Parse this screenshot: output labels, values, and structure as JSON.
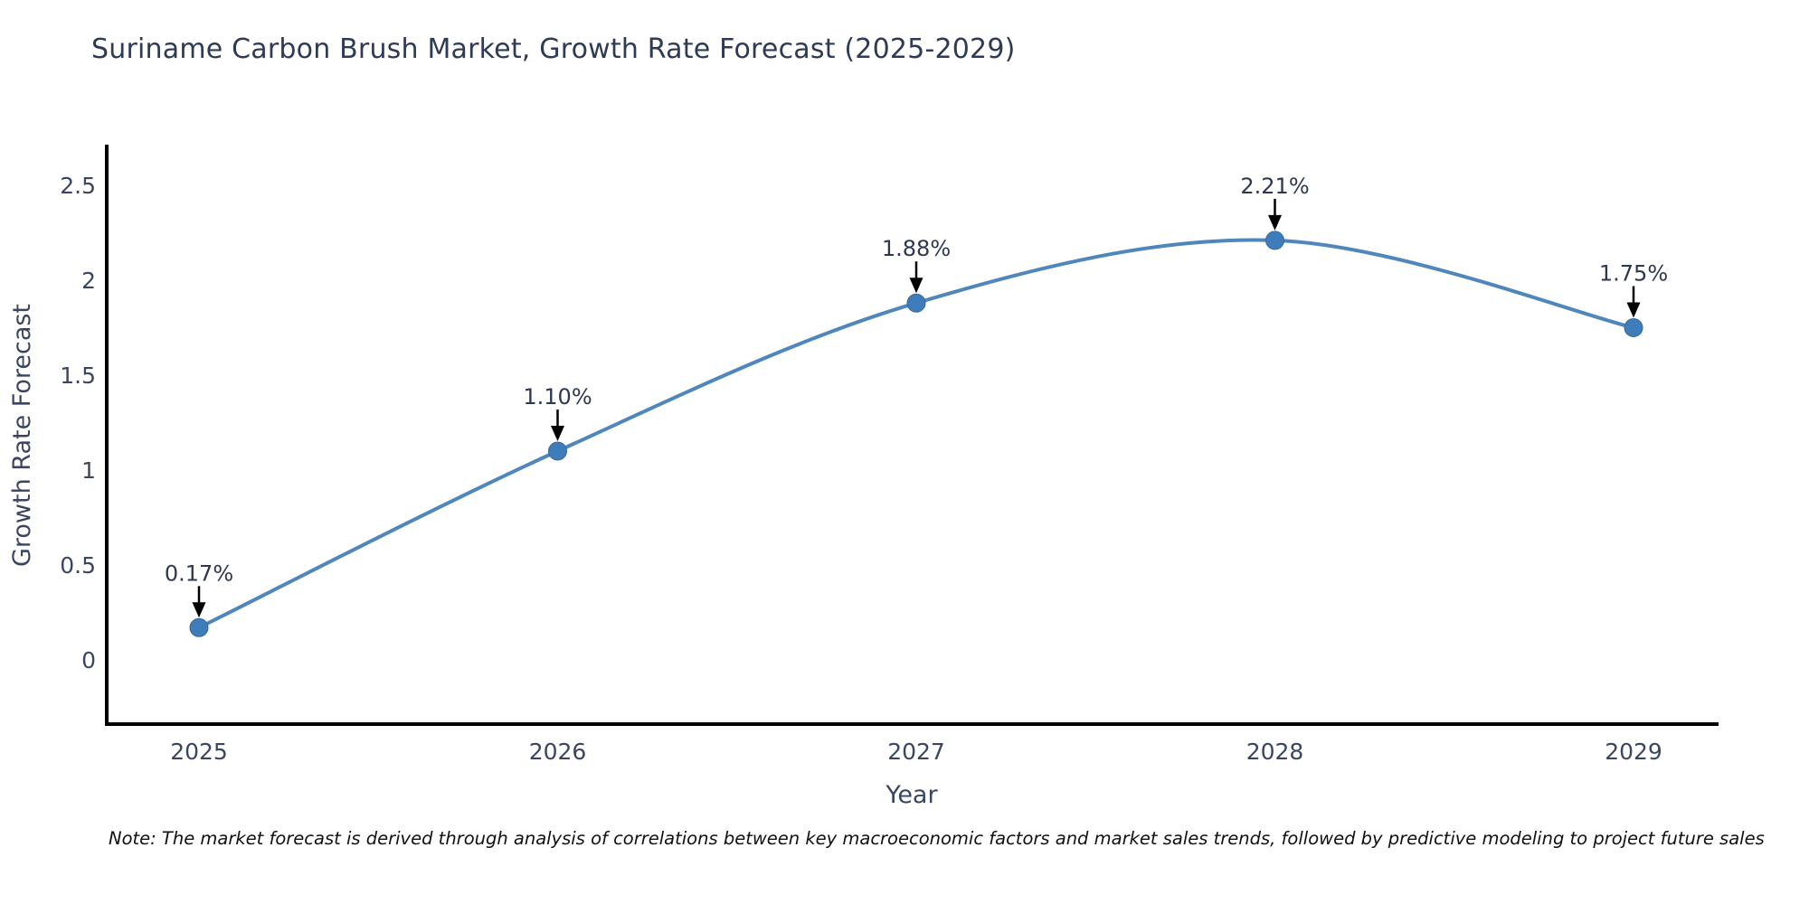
{
  "header": {
    "title": "Suriname Carbon Brush Market, Growth Rate Forecast (2025-2029)"
  },
  "note": {
    "text": "Note: The market forecast is derived through analysis of correlations between key macroeconomic factors and market sales trends, followed by predictive modeling to project future sales"
  },
  "chart_data": {
    "type": "line",
    "title": "Suriname Carbon Brush Market, Growth Rate Forecast (2025-2029)",
    "xlabel": "Year",
    "ylabel": "Growth Rate Forecast",
    "x": [
      2025,
      2026,
      2027,
      2028,
      2029
    ],
    "values": [
      0.17,
      1.1,
      1.88,
      2.21,
      1.75
    ],
    "point_labels": [
      "0.17%",
      "1.10%",
      "1.88%",
      "2.21%",
      "1.75%"
    ],
    "xtick_labels": [
      "2025",
      "2026",
      "2027",
      "2028",
      "2029"
    ],
    "ytick_labels": [
      "0",
      "0.5",
      "1",
      "1.5",
      "2",
      "2.5"
    ],
    "ytick_values": [
      0,
      0.5,
      1,
      1.5,
      2,
      2.5
    ],
    "ylim": [
      -0.34,
      2.72
    ],
    "grid": false,
    "legend": "none",
    "line_shape": "spline",
    "marker": "circle",
    "annotation_arrows": true,
    "colors": {
      "line": "#4f87bd",
      "marker_fill": "#3f7cba",
      "marker_edge": "#36699e",
      "axis_line": "#000000",
      "title_text": "#2e3b55",
      "tick_text": "#3a4660",
      "axis_title_text": "#3a4660",
      "annotation_text": "#2c3850",
      "arrow": "#000000",
      "note_text": "#111111",
      "background": "#ffffff"
    }
  }
}
